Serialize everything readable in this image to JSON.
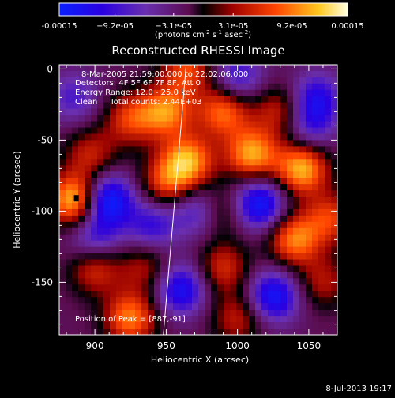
{
  "chart_data": {
    "type": "heatmap",
    "title": "Reconstructed RHESSI Image",
    "xlabel": "Heliocentric X (arcsec)",
    "ylabel": "Heliocentric Y (arcsec)",
    "xlim": [
      875,
      1070
    ],
    "ylim": [
      -187,
      3
    ],
    "x_ticks": [
      "900",
      "950",
      "1000",
      "1050"
    ],
    "x_tick_values": [
      900,
      950,
      1000,
      1050
    ],
    "y_ticks": [
      "0",
      "-50",
      "-100",
      "-150"
    ],
    "y_tick_values": [
      0,
      -50,
      -100,
      -150
    ],
    "colorbar": {
      "ticks": [
        "-0.00015",
        "−9.2e-05",
        "−3.1e-05",
        "3.1e-05",
        "9.2e-05",
        "0.00015"
      ],
      "tick_values": [
        -0.00015,
        -9.2e-05,
        -3.1e-05,
        3.1e-05,
        9.2e-05,
        0.00015
      ],
      "units_main": "(photons cm",
      "units_exp1": "-2",
      "units_mid": " s",
      "units_exp2": "-1",
      "units_end": " asec",
      "units_exp3": "-2",
      "units_close": ")"
    },
    "annotations": {
      "time": "8-Mar-2005 21:59:00.000 to 22:02:06.000",
      "detectors": "Detectors: 4F 5F 6F 7F 8F, Att 0",
      "energy": "Energy Range: 12.0 - 25.0 keV",
      "clean": "Clean     Total counts: 2.44E+03",
      "peak": "Position of Peak = [887,-91]"
    },
    "peak_position": [
      887,
      -91
    ],
    "limb_line": [
      [
        964,
        3
      ],
      [
        948,
        -187
      ]
    ],
    "blobs": [
      {
        "x": 886,
        "y": -92,
        "v": 1.0
      },
      {
        "x": 897,
        "y": -60,
        "v": 0.45
      },
      {
        "x": 925,
        "y": -35,
        "v": 0.55
      },
      {
        "x": 950,
        "y": -30,
        "v": 0.75
      },
      {
        "x": 965,
        "y": 0,
        "v": 0.6
      },
      {
        "x": 990,
        "y": -30,
        "v": 0.7
      },
      {
        "x": 1010,
        "y": -60,
        "v": 0.85
      },
      {
        "x": 1045,
        "y": -70,
        "v": 0.9
      },
      {
        "x": 1030,
        "y": -30,
        "v": 0.5
      },
      {
        "x": 965,
        "y": -65,
        "v": 0.85
      },
      {
        "x": 950,
        "y": -80,
        "v": 0.55
      },
      {
        "x": 985,
        "y": -100,
        "v": 0.6
      },
      {
        "x": 1065,
        "y": -105,
        "v": 0.55
      },
      {
        "x": 1040,
        "y": -120,
        "v": 0.75
      },
      {
        "x": 990,
        "y": -140,
        "v": 0.5
      },
      {
        "x": 900,
        "y": -140,
        "v": 0.55
      },
      {
        "x": 925,
        "y": -175,
        "v": 0.75
      },
      {
        "x": 935,
        "y": -140,
        "v": 0.4
      },
      {
        "x": 1060,
        "y": -150,
        "v": 0.4
      },
      {
        "x": 1000,
        "y": -175,
        "v": 0.45
      },
      {
        "x": 908,
        "y": -92,
        "v": -0.9
      },
      {
        "x": 975,
        "y": -100,
        "v": -0.7
      },
      {
        "x": 1015,
        "y": -95,
        "v": -0.8
      },
      {
        "x": 1025,
        "y": -160,
        "v": -0.75
      },
      {
        "x": 960,
        "y": -155,
        "v": -0.7
      },
      {
        "x": 1055,
        "y": -20,
        "v": -0.55
      },
      {
        "x": 1000,
        "y": -5,
        "v": -0.5
      },
      {
        "x": 885,
        "y": -20,
        "v": -0.4
      },
      {
        "x": 940,
        "y": -110,
        "v": -0.5
      },
      {
        "x": 900,
        "y": -120,
        "v": -0.5
      },
      {
        "x": 1050,
        "y": -40,
        "v": -0.45
      }
    ]
  },
  "footer": {
    "timestamp": "8-Jul-2013 19:17"
  }
}
